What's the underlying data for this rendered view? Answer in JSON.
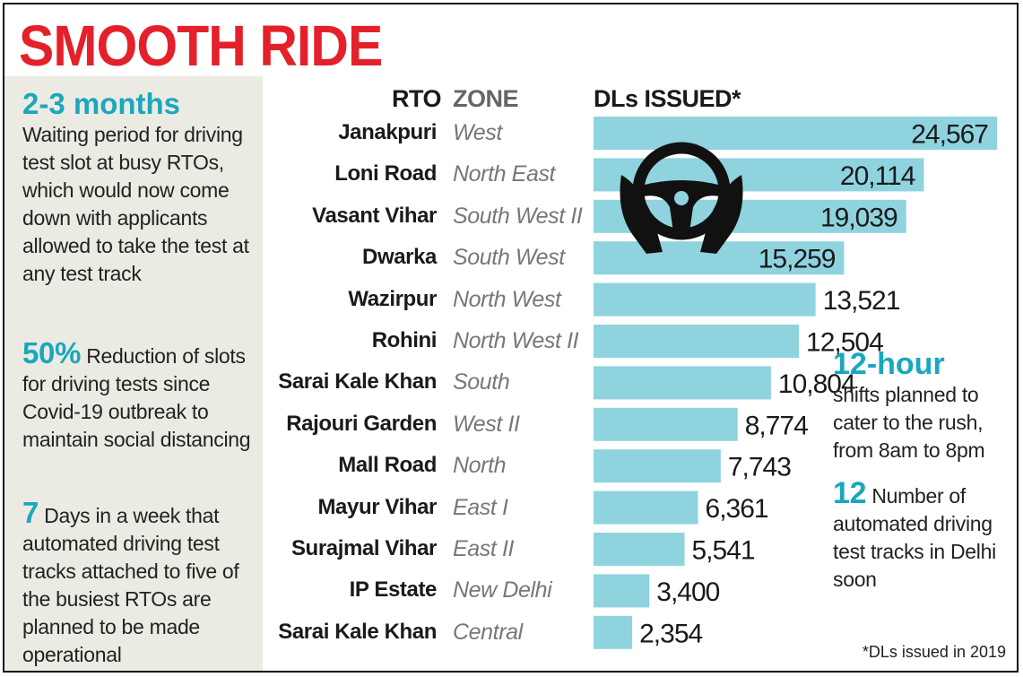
{
  "title": "SMOOTH RIDE",
  "sidebar": {
    "facts": [
      {
        "highlight": "2-3 months",
        "text": "Waiting period for driving test slot at busy RTOs, which would now come down with applicants allowed to take the test at any test track"
      },
      {
        "highlight": "50%",
        "text": "Reduction of slots for driving tests since Covid-19 outbreak to maintain social distancing"
      },
      {
        "highlight": "7",
        "text": "Days in a week that automated driving test tracks attached to five of the busiest RTOs are planned to be made operational"
      }
    ]
  },
  "right_notes": [
    {
      "highlight": "12-hour",
      "text": "shifts planned to cater to the rush, from 8am to 8pm"
    },
    {
      "highlight": "12",
      "text": "Number of automated driving test tracks in Delhi soon"
    }
  ],
  "footnote": "*DLs issued in 2019",
  "icon": "steering-wheel-hands-icon",
  "colors": {
    "title": "#e4202a",
    "accent": "#1ba7bd",
    "bar": "#8fd3df",
    "sidebar_bg": "#ecebe3"
  },
  "chart_data": {
    "type": "bar",
    "orientation": "horizontal",
    "headers": {
      "rto": "RTO",
      "zone": "ZONE",
      "value": "DLs ISSUED*"
    },
    "categories": [
      "Janakpuri",
      "Loni Road",
      "Vasant Vihar",
      "Dwarka",
      "Wazirpur",
      "Rohini",
      "Sarai Kale Khan",
      "Rajouri Garden",
      "Mall Road",
      "Mayur Vihar",
      "Surajmal Vihar",
      "IP Estate",
      "Sarai Kale Khan"
    ],
    "zones": [
      "West",
      "North East",
      "South West II",
      "South West",
      "North West",
      "North West II",
      "South",
      "West II",
      "North",
      "East I",
      "East II",
      "New Delhi",
      "Central"
    ],
    "values": [
      24567,
      20114,
      19039,
      15259,
      13521,
      12504,
      10804,
      8774,
      7743,
      6361,
      5541,
      3400,
      2354
    ],
    "value_labels": [
      "24,567",
      "20,114",
      "19,039",
      "15,259",
      "13,521",
      "12,504",
      "10,804",
      "8,774",
      "7,743",
      "6,361",
      "5,541",
      "3,400",
      "2,354"
    ],
    "xlim": [
      0,
      24567
    ]
  }
}
